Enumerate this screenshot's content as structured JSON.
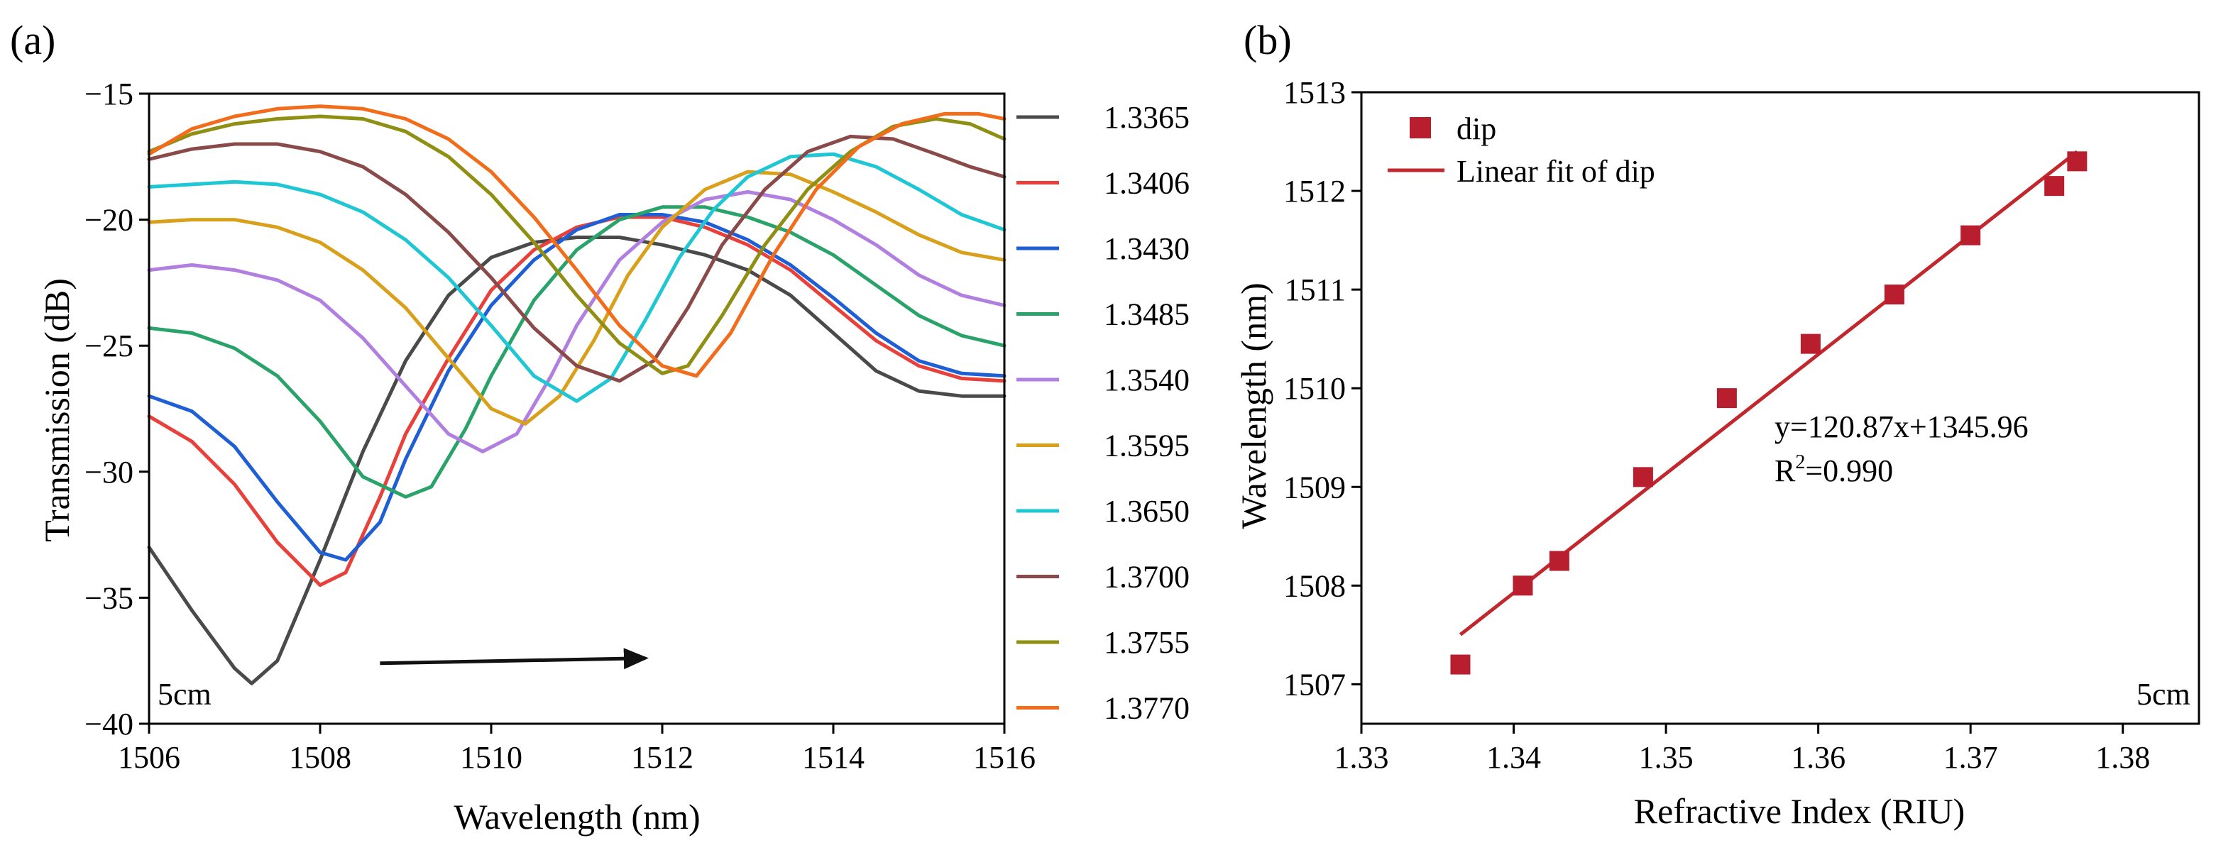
{
  "colors": {
    "axis": "#000000",
    "fit_line": "#c1272d",
    "marker": "#b81e2e",
    "arrow": "#111111"
  },
  "chart_data": [
    {
      "panel_label": "(a)",
      "type": "line",
      "title": "",
      "xlabel": "Wavelength (nm)",
      "ylabel": "Transmission (dB)",
      "xlim": [
        1506,
        1516
      ],
      "ylim": [
        -40,
        -15
      ],
      "xticks": [
        1506,
        1508,
        1510,
        1512,
        1514,
        1516
      ],
      "xtick_labels": [
        "1506",
        "1508",
        "1510",
        "1512",
        "1514",
        "1516"
      ],
      "yticks": [
        -40,
        -35,
        -30,
        -25,
        -20,
        -15
      ],
      "ytick_labels": [
        "−40",
        "−35",
        "−30",
        "−25",
        "−20",
        "−15"
      ],
      "annotation": "5cm",
      "arrow": {
        "from": [
          1508.7,
          -37.6
        ],
        "to": [
          1511.8,
          -37.4
        ]
      },
      "legend_position": "right-outside",
      "series": [
        {
          "name": "1.3365",
          "color": "#4a4a4a",
          "x": [
            1506,
            1506.5,
            1507,
            1507.2,
            1507.5,
            1508,
            1508.5,
            1509,
            1509.5,
            1510,
            1510.5,
            1511,
            1511.5,
            1512,
            1512.5,
            1513,
            1513.5,
            1514,
            1514.5,
            1515,
            1515.5,
            1516
          ],
          "y": [
            -33.0,
            -35.5,
            -37.8,
            -38.4,
            -37.5,
            -33.5,
            -29.2,
            -25.6,
            -23.0,
            -21.5,
            -20.9,
            -20.7,
            -20.7,
            -21.0,
            -21.4,
            -22.0,
            -23.0,
            -24.5,
            -26.0,
            -26.8,
            -27.0,
            -27.0
          ]
        },
        {
          "name": "1.3406",
          "color": "#e8413b",
          "x": [
            1506,
            1506.5,
            1507,
            1507.5,
            1508,
            1508.3,
            1508.7,
            1509,
            1509.5,
            1510,
            1510.5,
            1511,
            1511.5,
            1512,
            1512.5,
            1513,
            1513.5,
            1514,
            1514.5,
            1515,
            1515.5,
            1516
          ],
          "y": [
            -27.8,
            -28.8,
            -30.5,
            -32.8,
            -34.5,
            -34.0,
            -31.0,
            -28.5,
            -25.5,
            -22.8,
            -21.2,
            -20.3,
            -19.9,
            -19.9,
            -20.3,
            -21.0,
            -22.0,
            -23.4,
            -24.8,
            -25.8,
            -26.3,
            -26.4
          ]
        },
        {
          "name": "1.3430",
          "color": "#1f5fd6",
          "x": [
            1506,
            1506.5,
            1507,
            1507.5,
            1508,
            1508.3,
            1508.7,
            1509,
            1509.5,
            1510,
            1510.5,
            1511,
            1511.5,
            1512,
            1512.5,
            1513,
            1513.5,
            1514,
            1514.5,
            1515,
            1515.5,
            1516
          ],
          "y": [
            -27.0,
            -27.6,
            -29.0,
            -31.2,
            -33.2,
            -33.5,
            -32.0,
            -29.5,
            -26.0,
            -23.4,
            -21.6,
            -20.4,
            -19.8,
            -19.8,
            -20.1,
            -20.8,
            -21.8,
            -23.1,
            -24.5,
            -25.6,
            -26.1,
            -26.2
          ]
        },
        {
          "name": "1.3485",
          "color": "#2aa36a",
          "x": [
            1506,
            1506.5,
            1507,
            1507.5,
            1508,
            1508.5,
            1509,
            1509.3,
            1509.7,
            1510,
            1510.5,
            1511,
            1511.5,
            1512,
            1512.5,
            1513,
            1513.5,
            1514,
            1514.5,
            1515,
            1515.5,
            1516
          ],
          "y": [
            -24.3,
            -24.5,
            -25.1,
            -26.2,
            -28.0,
            -30.2,
            -31.0,
            -30.6,
            -28.3,
            -26.2,
            -23.2,
            -21.2,
            -20.0,
            -19.5,
            -19.5,
            -19.9,
            -20.5,
            -21.4,
            -22.6,
            -23.8,
            -24.6,
            -25.0
          ]
        },
        {
          "name": "1.3540",
          "color": "#b07fe0",
          "x": [
            1506,
            1506.5,
            1507,
            1507.5,
            1508,
            1508.5,
            1509,
            1509.5,
            1509.9,
            1510.3,
            1510.7,
            1511,
            1511.5,
            1512,
            1512.5,
            1513,
            1513.5,
            1514,
            1514.5,
            1515,
            1515.5,
            1516
          ],
          "y": [
            -22.0,
            -21.8,
            -22.0,
            -22.4,
            -23.2,
            -24.7,
            -26.6,
            -28.5,
            -29.2,
            -28.5,
            -26.2,
            -24.2,
            -21.6,
            -20.1,
            -19.2,
            -18.9,
            -19.2,
            -20.0,
            -21.0,
            -22.2,
            -23.0,
            -23.4
          ]
        },
        {
          "name": "1.3595",
          "color": "#d9a01c",
          "x": [
            1506,
            1506.5,
            1507,
            1507.5,
            1508,
            1508.5,
            1509,
            1509.5,
            1510,
            1510.4,
            1510.8,
            1511.2,
            1511.6,
            1512,
            1512.5,
            1513,
            1513.5,
            1514,
            1514.5,
            1515,
            1515.5,
            1516
          ],
          "y": [
            -20.1,
            -20.0,
            -20.0,
            -20.3,
            -20.9,
            -22.0,
            -23.5,
            -25.5,
            -27.5,
            -28.1,
            -27.0,
            -24.8,
            -22.2,
            -20.3,
            -18.8,
            -18.1,
            -18.2,
            -18.9,
            -19.7,
            -20.6,
            -21.3,
            -21.6
          ]
        },
        {
          "name": "1.3650",
          "color": "#1fc6d3",
          "x": [
            1506,
            1506.5,
            1507,
            1507.5,
            1508,
            1508.5,
            1509,
            1509.5,
            1510,
            1510.5,
            1511,
            1511.4,
            1511.8,
            1512.2,
            1512.6,
            1513,
            1513.5,
            1514,
            1514.5,
            1515,
            1515.5,
            1516
          ],
          "y": [
            -18.7,
            -18.6,
            -18.5,
            -18.6,
            -19.0,
            -19.7,
            -20.8,
            -22.3,
            -24.2,
            -26.2,
            -27.2,
            -26.3,
            -24.0,
            -21.5,
            -19.6,
            -18.3,
            -17.5,
            -17.4,
            -17.9,
            -18.8,
            -19.8,
            -20.4
          ]
        },
        {
          "name": "1.3700",
          "color": "#8b4a4a",
          "x": [
            1506,
            1506.5,
            1507,
            1507.5,
            1508,
            1508.5,
            1509,
            1509.5,
            1510,
            1510.5,
            1511,
            1511.5,
            1511.9,
            1512.3,
            1512.7,
            1513.2,
            1513.7,
            1514.2,
            1514.7,
            1515.2,
            1515.6,
            1516
          ],
          "y": [
            -17.6,
            -17.2,
            -17.0,
            -17.0,
            -17.3,
            -17.9,
            -19.0,
            -20.5,
            -22.3,
            -24.3,
            -25.8,
            -26.4,
            -25.6,
            -23.5,
            -21.0,
            -18.8,
            -17.3,
            -16.7,
            -16.8,
            -17.4,
            -17.9,
            -18.3
          ]
        },
        {
          "name": "1.3755",
          "color": "#8f8f14",
          "x": [
            1506,
            1506.5,
            1507,
            1507.5,
            1508,
            1508.5,
            1509,
            1509.5,
            1510,
            1510.5,
            1511,
            1511.5,
            1512,
            1512.3,
            1512.7,
            1513.2,
            1513.7,
            1514.2,
            1514.7,
            1515.2,
            1515.6,
            1516
          ],
          "y": [
            -17.3,
            -16.6,
            -16.2,
            -16.0,
            -15.9,
            -16.0,
            -16.5,
            -17.5,
            -19.0,
            -20.9,
            -23.0,
            -24.9,
            -26.1,
            -25.8,
            -23.8,
            -21.0,
            -18.8,
            -17.3,
            -16.3,
            -16.0,
            -16.2,
            -16.8
          ]
        },
        {
          "name": "1.3770",
          "color": "#f26d1b",
          "x": [
            1506,
            1506.5,
            1507,
            1507.5,
            1508,
            1508.5,
            1509,
            1509.5,
            1510,
            1510.5,
            1511,
            1511.5,
            1512,
            1512.4,
            1512.8,
            1513.3,
            1513.8,
            1514.3,
            1514.8,
            1515.3,
            1515.7,
            1516
          ],
          "y": [
            -17.4,
            -16.4,
            -15.9,
            -15.6,
            -15.5,
            -15.6,
            -16.0,
            -16.8,
            -18.1,
            -19.9,
            -22.0,
            -24.2,
            -25.8,
            -26.2,
            -24.5,
            -21.4,
            -18.8,
            -17.1,
            -16.2,
            -15.8,
            -15.8,
            -16.0
          ]
        }
      ]
    },
    {
      "panel_label": "(b)",
      "type": "scatter",
      "title": "",
      "xlabel": "Refractive Index (RIU)",
      "ylabel": "Wavelength (nm)",
      "xlim": [
        1.33,
        1.385
      ],
      "ylim": [
        1506.6,
        1513
      ],
      "xticks": [
        1.33,
        1.34,
        1.35,
        1.36,
        1.37,
        1.38
      ],
      "xtick_labels": [
        "1.33",
        "1.34",
        "1.35",
        "1.36",
        "1.37",
        "1.38"
      ],
      "yticks": [
        1507,
        1508,
        1509,
        1510,
        1511,
        1512,
        1513
      ],
      "ytick_labels": [
        "1507",
        "1508",
        "1509",
        "1510",
        "1511",
        "1512",
        "1513"
      ],
      "annotation": "5cm",
      "equation": "y=120.87x+1345.96",
      "r2_prefix": "R",
      "r2_sup": "2",
      "r2_value": "=0.990",
      "legend": {
        "marker_label": "dip",
        "line_label": "Linear fit of dip"
      },
      "points": {
        "x": [
          1.3365,
          1.3406,
          1.343,
          1.3485,
          1.354,
          1.3595,
          1.365,
          1.37,
          1.3755,
          1.377
        ],
        "y": [
          1507.2,
          1508.0,
          1508.25,
          1509.1,
          1509.9,
          1510.45,
          1510.95,
          1511.55,
          1512.05,
          1512.3
        ]
      },
      "fit": {
        "slope": 120.87,
        "intercept": 1345.96,
        "x_range": [
          1.3365,
          1.377
        ]
      }
    }
  ]
}
